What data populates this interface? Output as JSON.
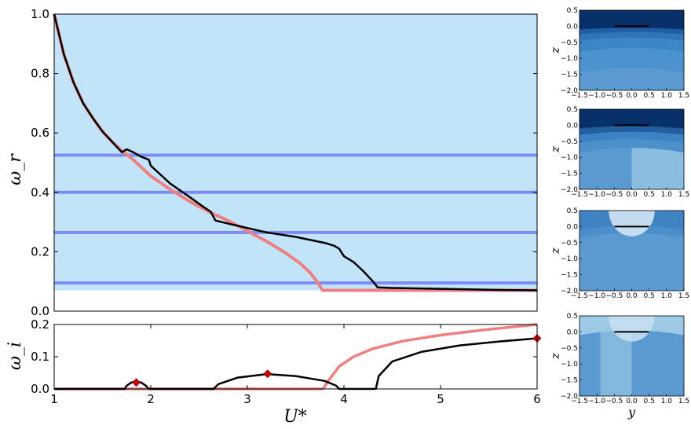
{
  "chart_data": [
    {
      "type": "line",
      "panel": "frequency",
      "ylabel": "ω_r",
      "xlim": [
        1,
        6
      ],
      "ylim": [
        0,
        1.0
      ],
      "yticks": [
        "0.0",
        "0.2",
        "0.4",
        "0.6",
        "0.8",
        "1.0"
      ],
      "shaded_region": {
        "y_from": 0.07,
        "y_to": 1.0,
        "color": "#c2e4f8"
      },
      "horizontal_lines": {
        "y": [
          0.525,
          0.4,
          0.265,
          0.095
        ],
        "color": "#7c8cf5"
      },
      "series": [
        {
          "color": "#f08080",
          "x": [
            1.0,
            1.1,
            1.2,
            1.3,
            1.4,
            1.5,
            1.6,
            1.7,
            1.8,
            1.9,
            2.0,
            2.2,
            2.4,
            2.6,
            2.8,
            3.0,
            3.2,
            3.4,
            3.55,
            3.65,
            3.72,
            3.78,
            3.79,
            4.0,
            4.5,
            5.0,
            5.5,
            6.0
          ],
          "y": [
            1.0,
            0.865,
            0.77,
            0.7,
            0.65,
            0.605,
            0.57,
            0.54,
            0.515,
            0.485,
            0.455,
            0.41,
            0.37,
            0.335,
            0.305,
            0.27,
            0.235,
            0.195,
            0.16,
            0.13,
            0.1,
            0.07,
            0.07,
            0.07,
            0.07,
            0.07,
            0.07,
            0.07
          ]
        },
        {
          "color": "#000000",
          "x": [
            1.0,
            1.1,
            1.2,
            1.3,
            1.4,
            1.5,
            1.6,
            1.7,
            1.75,
            1.82,
            1.9,
            1.98,
            2.0,
            2.2,
            2.4,
            2.55,
            2.62,
            2.67,
            2.8,
            3.0,
            3.2,
            3.5,
            3.8,
            3.9,
            3.95,
            4.0,
            4.1,
            4.2,
            4.3,
            4.35,
            4.5,
            5.0,
            5.5,
            6.0
          ],
          "y": [
            1.0,
            0.865,
            0.77,
            0.7,
            0.65,
            0.605,
            0.57,
            0.535,
            0.545,
            0.535,
            0.52,
            0.51,
            0.49,
            0.43,
            0.385,
            0.35,
            0.335,
            0.305,
            0.295,
            0.28,
            0.265,
            0.25,
            0.23,
            0.22,
            0.21,
            0.185,
            0.165,
            0.135,
            0.1,
            0.08,
            0.078,
            0.075,
            0.072,
            0.07
          ]
        }
      ]
    },
    {
      "type": "line",
      "panel": "growth",
      "ylabel": "ω_i",
      "xlabel": "U*",
      "xlim": [
        1,
        6
      ],
      "ylim": [
        0,
        0.2
      ],
      "xticks": [
        "1",
        "2",
        "3",
        "4",
        "5",
        "6"
      ],
      "yticks": [
        "0.0",
        "0.1",
        "0.2"
      ],
      "series": [
        {
          "color": "#f08080",
          "x": [
            1.0,
            3.77,
            3.79,
            3.85,
            3.95,
            4.1,
            4.3,
            4.6,
            5.0,
            5.5,
            6.0
          ],
          "y": [
            0,
            0,
            0.003,
            0.03,
            0.07,
            0.1,
            0.125,
            0.148,
            0.167,
            0.185,
            0.2
          ]
        },
        {
          "color": "#000000",
          "x": [
            1.0,
            1.73,
            1.75,
            1.8,
            1.85,
            1.9,
            1.95,
            1.98,
            2.65,
            2.7,
            2.9,
            3.2,
            3.5,
            3.8,
            3.92,
            3.95,
            4.33,
            4.36,
            4.5,
            4.8,
            5.2,
            5.6,
            6.0
          ],
          "y": [
            0,
            0,
            0.01,
            0.02,
            0.022,
            0.02,
            0.01,
            0,
            0,
            0.015,
            0.035,
            0.046,
            0.04,
            0.025,
            0.01,
            0,
            0,
            0.04,
            0.085,
            0.115,
            0.135,
            0.147,
            0.157
          ]
        }
      ],
      "markers": {
        "color": "#cc0000",
        "shape": "diamond",
        "x": [
          1.85,
          3.21,
          6.0
        ],
        "y": [
          0.02,
          0.047,
          0.157
        ]
      }
    }
  ],
  "mode_panels": {
    "xticks": [
      "−1.5",
      "−1.0",
      "−0.5",
      "0.0",
      "0.5",
      "1.0",
      "1.5"
    ],
    "yticks": [
      "0.5",
      "0.0",
      "−0.5",
      "−1.0",
      "−1.5",
      "−2.0"
    ],
    "ylabel": "z",
    "xlabel": "y",
    "panels": [
      {
        "base": "#5a9ad1",
        "bands": [
          {
            "y": 0.45,
            "color": "#08306b"
          },
          {
            "y": 0.3,
            "color": "#1f5ea4"
          },
          {
            "y": 0.1,
            "color": "#2f76b8"
          },
          {
            "y": -0.25,
            "color": "#3b87c6"
          },
          {
            "y": -0.9,
            "color": "#4b93cf"
          }
        ]
      },
      {
        "base": "#5a9ad1",
        "bands": [
          {
            "y": 0.45,
            "color": "#08306b"
          },
          {
            "y": 0.25,
            "color": "#235f9f"
          },
          {
            "y": 0.0,
            "color": "#3b83c3"
          },
          {
            "y": -0.3,
            "color": "#4b8fcb"
          }
        ],
        "right_tint": "#8fc1e0"
      },
      {
        "base": "#5a9ad1",
        "bands": [
          {
            "y": 0.45,
            "color": "#3f83c2"
          },
          {
            "y": 0.2,
            "color": "#4a8fcb"
          }
        ],
        "center_light": "#dceaf6"
      },
      {
        "base": "#5a9ad1",
        "bands": [
          {
            "y": 0.45,
            "color": "#9ccae4"
          }
        ],
        "center_light": "#c9e1f1",
        "left_tint": "#8fc1e0"
      }
    ]
  }
}
